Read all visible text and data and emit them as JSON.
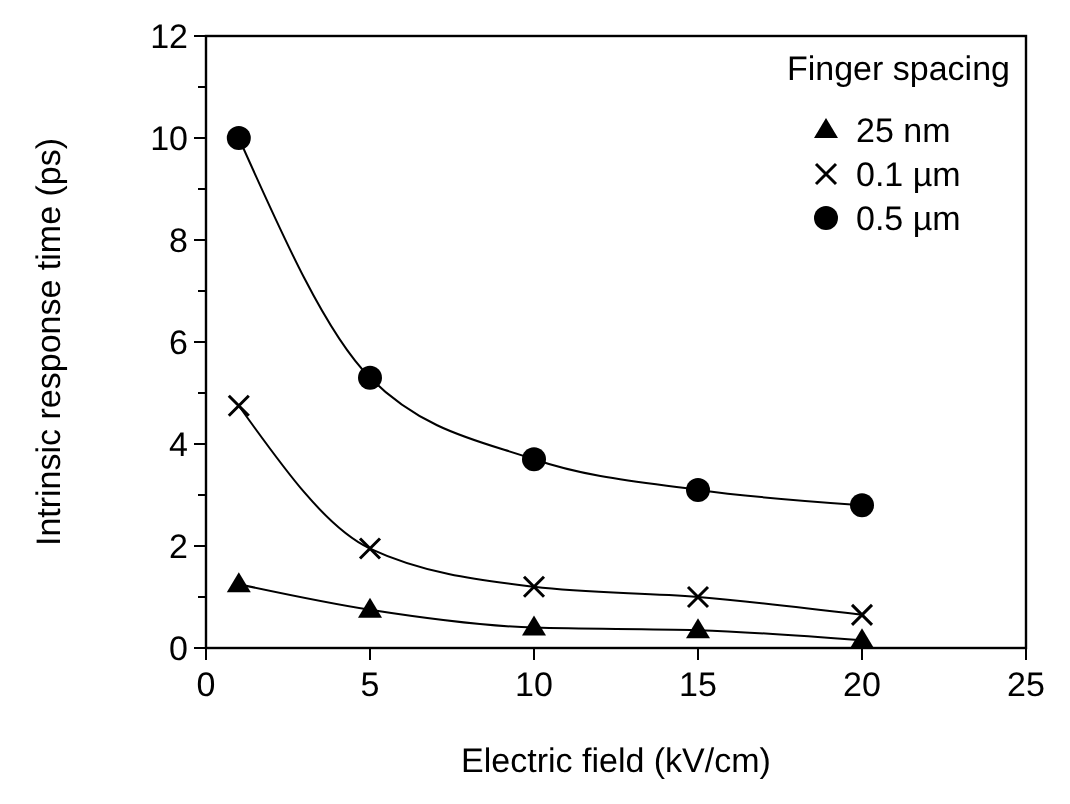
{
  "chart_data": {
    "type": "line",
    "xlabel": "Electric field (kV/cm)",
    "ylabel": "Intrinsic response time (ps)",
    "legend_title": "Finger spacing",
    "legend": "top right",
    "x": [
      1,
      5,
      10,
      15,
      20
    ],
    "xlim": [
      0,
      25
    ],
    "xticks": [
      0,
      5,
      10,
      15,
      20,
      25
    ],
    "ylim": [
      0,
      12
    ],
    "yticks": [
      0,
      {
        "value": 1,
        "label": null
      },
      2,
      {
        "value": 3,
        "label": null
      },
      4,
      {
        "value": 5,
        "label": null
      },
      6,
      {
        "value": 7,
        "label": null
      },
      8,
      {
        "value": 9,
        "label": null
      },
      10,
      {
        "value": 11,
        "label": null
      },
      12
    ],
    "grid": false,
    "line_style": "solid",
    "series": [
      {
        "name": "25 nm",
        "color": "#000000",
        "marker": "triangle",
        "values": [
          1.25,
          0.75,
          0.4,
          0.35,
          0.15
        ]
      },
      {
        "name": "0.1 µm",
        "color": "#000000",
        "marker": "cross",
        "values": [
          4.75,
          1.95,
          1.2,
          1.0,
          0.65
        ]
      },
      {
        "name": "0.5 µm",
        "color": "#000000",
        "marker": "circle",
        "values": [
          10,
          5.3,
          3.7,
          3.1,
          2.8
        ]
      }
    ]
  }
}
